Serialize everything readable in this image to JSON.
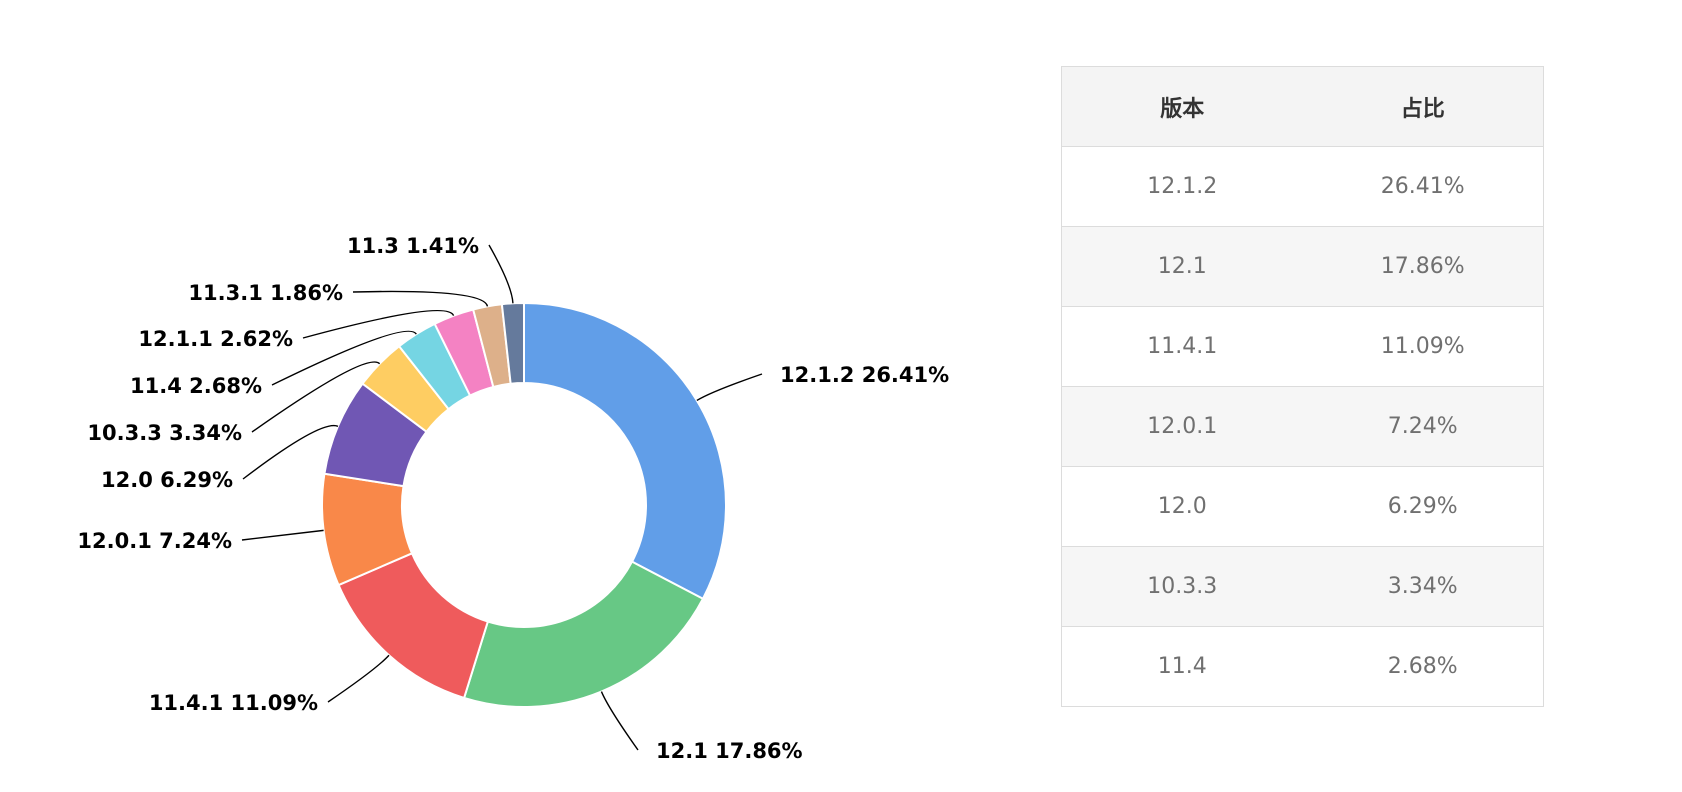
{
  "chart_data": {
    "type": "pie",
    "variant": "donut",
    "slices": [
      {
        "label": "12.1.2",
        "value": 26.41,
        "text": "12.1.2 26.41%",
        "color": "#619ee8"
      },
      {
        "label": "12.1",
        "value": 17.86,
        "text": "12.1 17.86%",
        "color": "#67c885"
      },
      {
        "label": "11.4.1",
        "value": 11.09,
        "text": "11.4.1 11.09%",
        "color": "#ef5b5c"
      },
      {
        "label": "12.0.1",
        "value": 7.24,
        "text": "12.0.1 7.24%",
        "color": "#f98849"
      },
      {
        "label": "12.0",
        "value": 6.29,
        "text": "12.0 6.29%",
        "color": "#7057b4"
      },
      {
        "label": "10.3.3",
        "value": 3.34,
        "text": "10.3.3 3.34%",
        "color": "#fecd62"
      },
      {
        "label": "11.4",
        "value": 2.68,
        "text": "11.4 2.68%",
        "color": "#75d5e3"
      },
      {
        "label": "12.1.1",
        "value": 2.62,
        "text": "12.1.1 2.62%",
        "color": "#f482c3"
      },
      {
        "label": "11.3.1",
        "value": 1.86,
        "text": "11.3.1 1.86%",
        "color": "#ddb08a"
      },
      {
        "label": "11.3",
        "value": 1.41,
        "text": "11.3 1.41%",
        "color": "#657a9c"
      }
    ]
  },
  "table": {
    "headers": [
      "版本",
      "占比"
    ],
    "rows": [
      [
        "12.1.2",
        "26.41%"
      ],
      [
        "12.1",
        "17.86%"
      ],
      [
        "11.4.1",
        "11.09%"
      ],
      [
        "12.0.1",
        "7.24%"
      ],
      [
        "12.0",
        "6.29%"
      ],
      [
        "10.3.3",
        "3.34%"
      ],
      [
        "11.4",
        "2.68%"
      ]
    ]
  }
}
